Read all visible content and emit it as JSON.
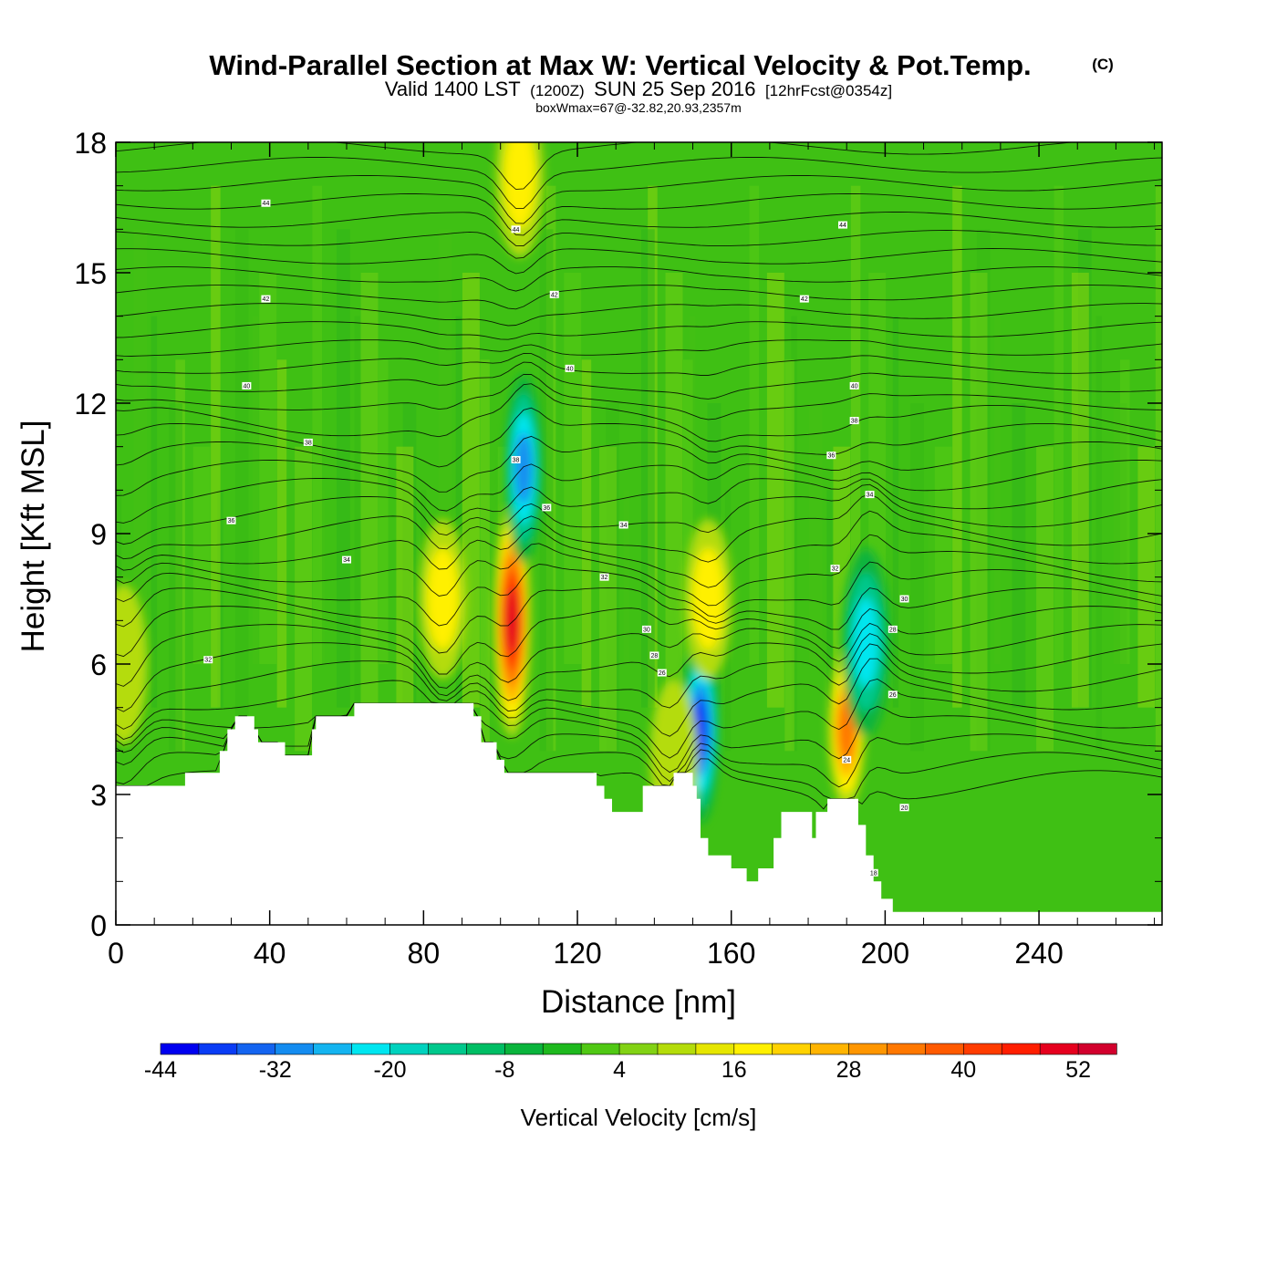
{
  "header": {
    "title": "Wind-Parallel Section at Max W: Vertical Velocity & Pot.Temp.",
    "copyright": "(C)",
    "valid_prefix": "Valid 1400 LST",
    "valid_zulu": "(1200Z)",
    "valid_date": "SUN 25 Sep 2016",
    "forecast": "[12hrFcst@0354z]",
    "boxwmax": "boxWmax=67@-32.82,20.93,2357m"
  },
  "chart_data": {
    "type": "heatmap",
    "title": "Wind-Parallel Section at Max W: Vertical Velocity & Pot.Temp.",
    "xlabel": "Distance [nm]",
    "ylabel": "Height [Kft MSL]",
    "xlim": [
      0,
      272
    ],
    "ylim": [
      0,
      18
    ],
    "x_ticks": [
      0,
      40,
      80,
      120,
      160,
      200,
      240
    ],
    "y_ticks": [
      0,
      3,
      6,
      9,
      12,
      15,
      18
    ],
    "x_tick_labels": [
      "0",
      "40",
      "80",
      "120",
      "160",
      "200",
      "240"
    ],
    "y_tick_labels": [
      "0",
      "3",
      "6",
      "9",
      "12",
      "15",
      "18"
    ],
    "colorbar": {
      "label": "Vertical Velocity [cm/s]",
      "levels": [
        -44,
        -40,
        -36,
        -32,
        -28,
        -24,
        -20,
        -16,
        -12,
        -8,
        -4,
        0,
        4,
        8,
        12,
        16,
        20,
        24,
        28,
        32,
        36,
        40,
        44,
        48,
        52,
        56
      ],
      "tick_labels": [
        "-44",
        "-32",
        "-20",
        "-8",
        "4",
        "16",
        "28",
        "40",
        "52"
      ],
      "colors": [
        "#0000f0",
        "#0a3cf5",
        "#1464f0",
        "#148cf0",
        "#14b4f0",
        "#00e6f0",
        "#00d2be",
        "#00c88c",
        "#00be64",
        "#0ab43c",
        "#1eb91e",
        "#50c814",
        "#82d214",
        "#b4dc0a",
        "#e6e600",
        "#fff000",
        "#ffd200",
        "#ffb400",
        "#ff9600",
        "#ff7800",
        "#ff5a00",
        "#ff3c00",
        "#ff1e00",
        "#e6001e",
        "#d2002d"
      ]
    },
    "w_features": [
      {
        "x": 103,
        "y": 7.0,
        "w": 54,
        "kind": "updraft"
      },
      {
        "x": 105,
        "y": 17.2,
        "w": 20,
        "kind": "updraft"
      },
      {
        "x": 85,
        "y": 7.5,
        "w": 16,
        "kind": "updraft"
      },
      {
        "x": 106,
        "y": 10.5,
        "w": -32,
        "kind": "downdraft"
      },
      {
        "x": 152,
        "y": 4.5,
        "w": -40,
        "kind": "downdraft"
      },
      {
        "x": 154,
        "y": 7.5,
        "w": 16,
        "kind": "updraft"
      },
      {
        "x": 190,
        "y": 4.5,
        "w": 36,
        "kind": "updraft"
      },
      {
        "x": 195,
        "y": 6.5,
        "w": -28,
        "kind": "downdraft"
      },
      {
        "x": 2,
        "y": 6.0,
        "w": 12,
        "kind": "updraft"
      },
      {
        "x": 145,
        "y": 3.8,
        "w": 14,
        "kind": "updraft"
      }
    ],
    "terrain": [
      {
        "x": 0,
        "h": 3.2
      },
      {
        "x": 17,
        "h": 3.2
      },
      {
        "x": 18,
        "h": 3.5
      },
      {
        "x": 26,
        "h": 3.5
      },
      {
        "x": 27,
        "h": 4.0
      },
      {
        "x": 29,
        "h": 4.5
      },
      {
        "x": 31,
        "h": 4.8
      },
      {
        "x": 35,
        "h": 4.8
      },
      {
        "x": 36,
        "h": 4.5
      },
      {
        "x": 37,
        "h": 4.2
      },
      {
        "x": 43,
        "h": 4.2
      },
      {
        "x": 44,
        "h": 3.9
      },
      {
        "x": 50,
        "h": 3.9
      },
      {
        "x": 51,
        "h": 4.5
      },
      {
        "x": 52,
        "h": 4.8
      },
      {
        "x": 61,
        "h": 4.8
      },
      {
        "x": 62,
        "h": 5.1
      },
      {
        "x": 92,
        "h": 5.1
      },
      {
        "x": 93,
        "h": 4.8
      },
      {
        "x": 95,
        "h": 4.2
      },
      {
        "x": 99,
        "h": 3.8
      },
      {
        "x": 101,
        "h": 3.5
      },
      {
        "x": 124,
        "h": 3.5
      },
      {
        "x": 125,
        "h": 3.2
      },
      {
        "x": 127,
        "h": 2.9
      },
      {
        "x": 129,
        "h": 2.6
      },
      {
        "x": 136,
        "h": 2.6
      },
      {
        "x": 137,
        "h": 3.2
      },
      {
        "x": 144,
        "h": 3.2
      },
      {
        "x": 145,
        "h": 3.5
      },
      {
        "x": 149,
        "h": 3.5
      },
      {
        "x": 150,
        "h": 3.2
      },
      {
        "x": 151,
        "h": 2.9
      },
      {
        "x": 152,
        "h": 2.0
      },
      {
        "x": 154,
        "h": 1.6
      },
      {
        "x": 158,
        "h": 1.6
      },
      {
        "x": 160,
        "h": 1.3
      },
      {
        "x": 164,
        "h": 1.0
      },
      {
        "x": 167,
        "h": 1.3
      },
      {
        "x": 171,
        "h": 2.0
      },
      {
        "x": 173,
        "h": 2.6
      },
      {
        "x": 180,
        "h": 2.6
      },
      {
        "x": 181,
        "h": 2.0
      },
      {
        "x": 182,
        "h": 2.6
      },
      {
        "x": 185,
        "h": 2.9
      },
      {
        "x": 191,
        "h": 2.9
      },
      {
        "x": 193,
        "h": 2.3
      },
      {
        "x": 195,
        "h": 1.6
      },
      {
        "x": 197,
        "h": 1.0
      },
      {
        "x": 199,
        "h": 0.6
      },
      {
        "x": 202,
        "h": 0.3
      },
      {
        "x": 272,
        "h": 0.3
      }
    ],
    "theta_contour_labels": [
      {
        "x": 39,
        "y": 16.6,
        "text": "44"
      },
      {
        "x": 39,
        "y": 14.4,
        "text": "42"
      },
      {
        "x": 34,
        "y": 12.4,
        "text": "40"
      },
      {
        "x": 50,
        "y": 11.1,
        "text": "38"
      },
      {
        "x": 30,
        "y": 9.3,
        "text": "36"
      },
      {
        "x": 60,
        "y": 8.4,
        "text": "34"
      },
      {
        "x": 24,
        "y": 6.1,
        "text": "32"
      },
      {
        "x": 104,
        "y": 16.0,
        "text": "44"
      },
      {
        "x": 114,
        "y": 14.5,
        "text": "42"
      },
      {
        "x": 118,
        "y": 12.8,
        "text": "40"
      },
      {
        "x": 104,
        "y": 10.7,
        "text": "38"
      },
      {
        "x": 112,
        "y": 9.6,
        "text": "36"
      },
      {
        "x": 132,
        "y": 9.2,
        "text": "34"
      },
      {
        "x": 127,
        "y": 8.0,
        "text": "32"
      },
      {
        "x": 138,
        "y": 6.8,
        "text": "30"
      },
      {
        "x": 140,
        "y": 6.2,
        "text": "28"
      },
      {
        "x": 142,
        "y": 5.8,
        "text": "26"
      },
      {
        "x": 189,
        "y": 16.1,
        "text": "44"
      },
      {
        "x": 179,
        "y": 14.4,
        "text": "42"
      },
      {
        "x": 192,
        "y": 12.4,
        "text": "40"
      },
      {
        "x": 192,
        "y": 11.6,
        "text": "38"
      },
      {
        "x": 186,
        "y": 10.8,
        "text": "36"
      },
      {
        "x": 196,
        "y": 9.9,
        "text": "34"
      },
      {
        "x": 187,
        "y": 8.2,
        "text": "32"
      },
      {
        "x": 205,
        "y": 7.5,
        "text": "30"
      },
      {
        "x": 202,
        "y": 6.8,
        "text": "28"
      },
      {
        "x": 202,
        "y": 5.3,
        "text": "26"
      },
      {
        "x": 190,
        "y": 3.8,
        "text": "24"
      },
      {
        "x": 205,
        "y": 2.7,
        "text": "20"
      },
      {
        "x": 197,
        "y": 1.2,
        "text": "18"
      }
    ]
  }
}
